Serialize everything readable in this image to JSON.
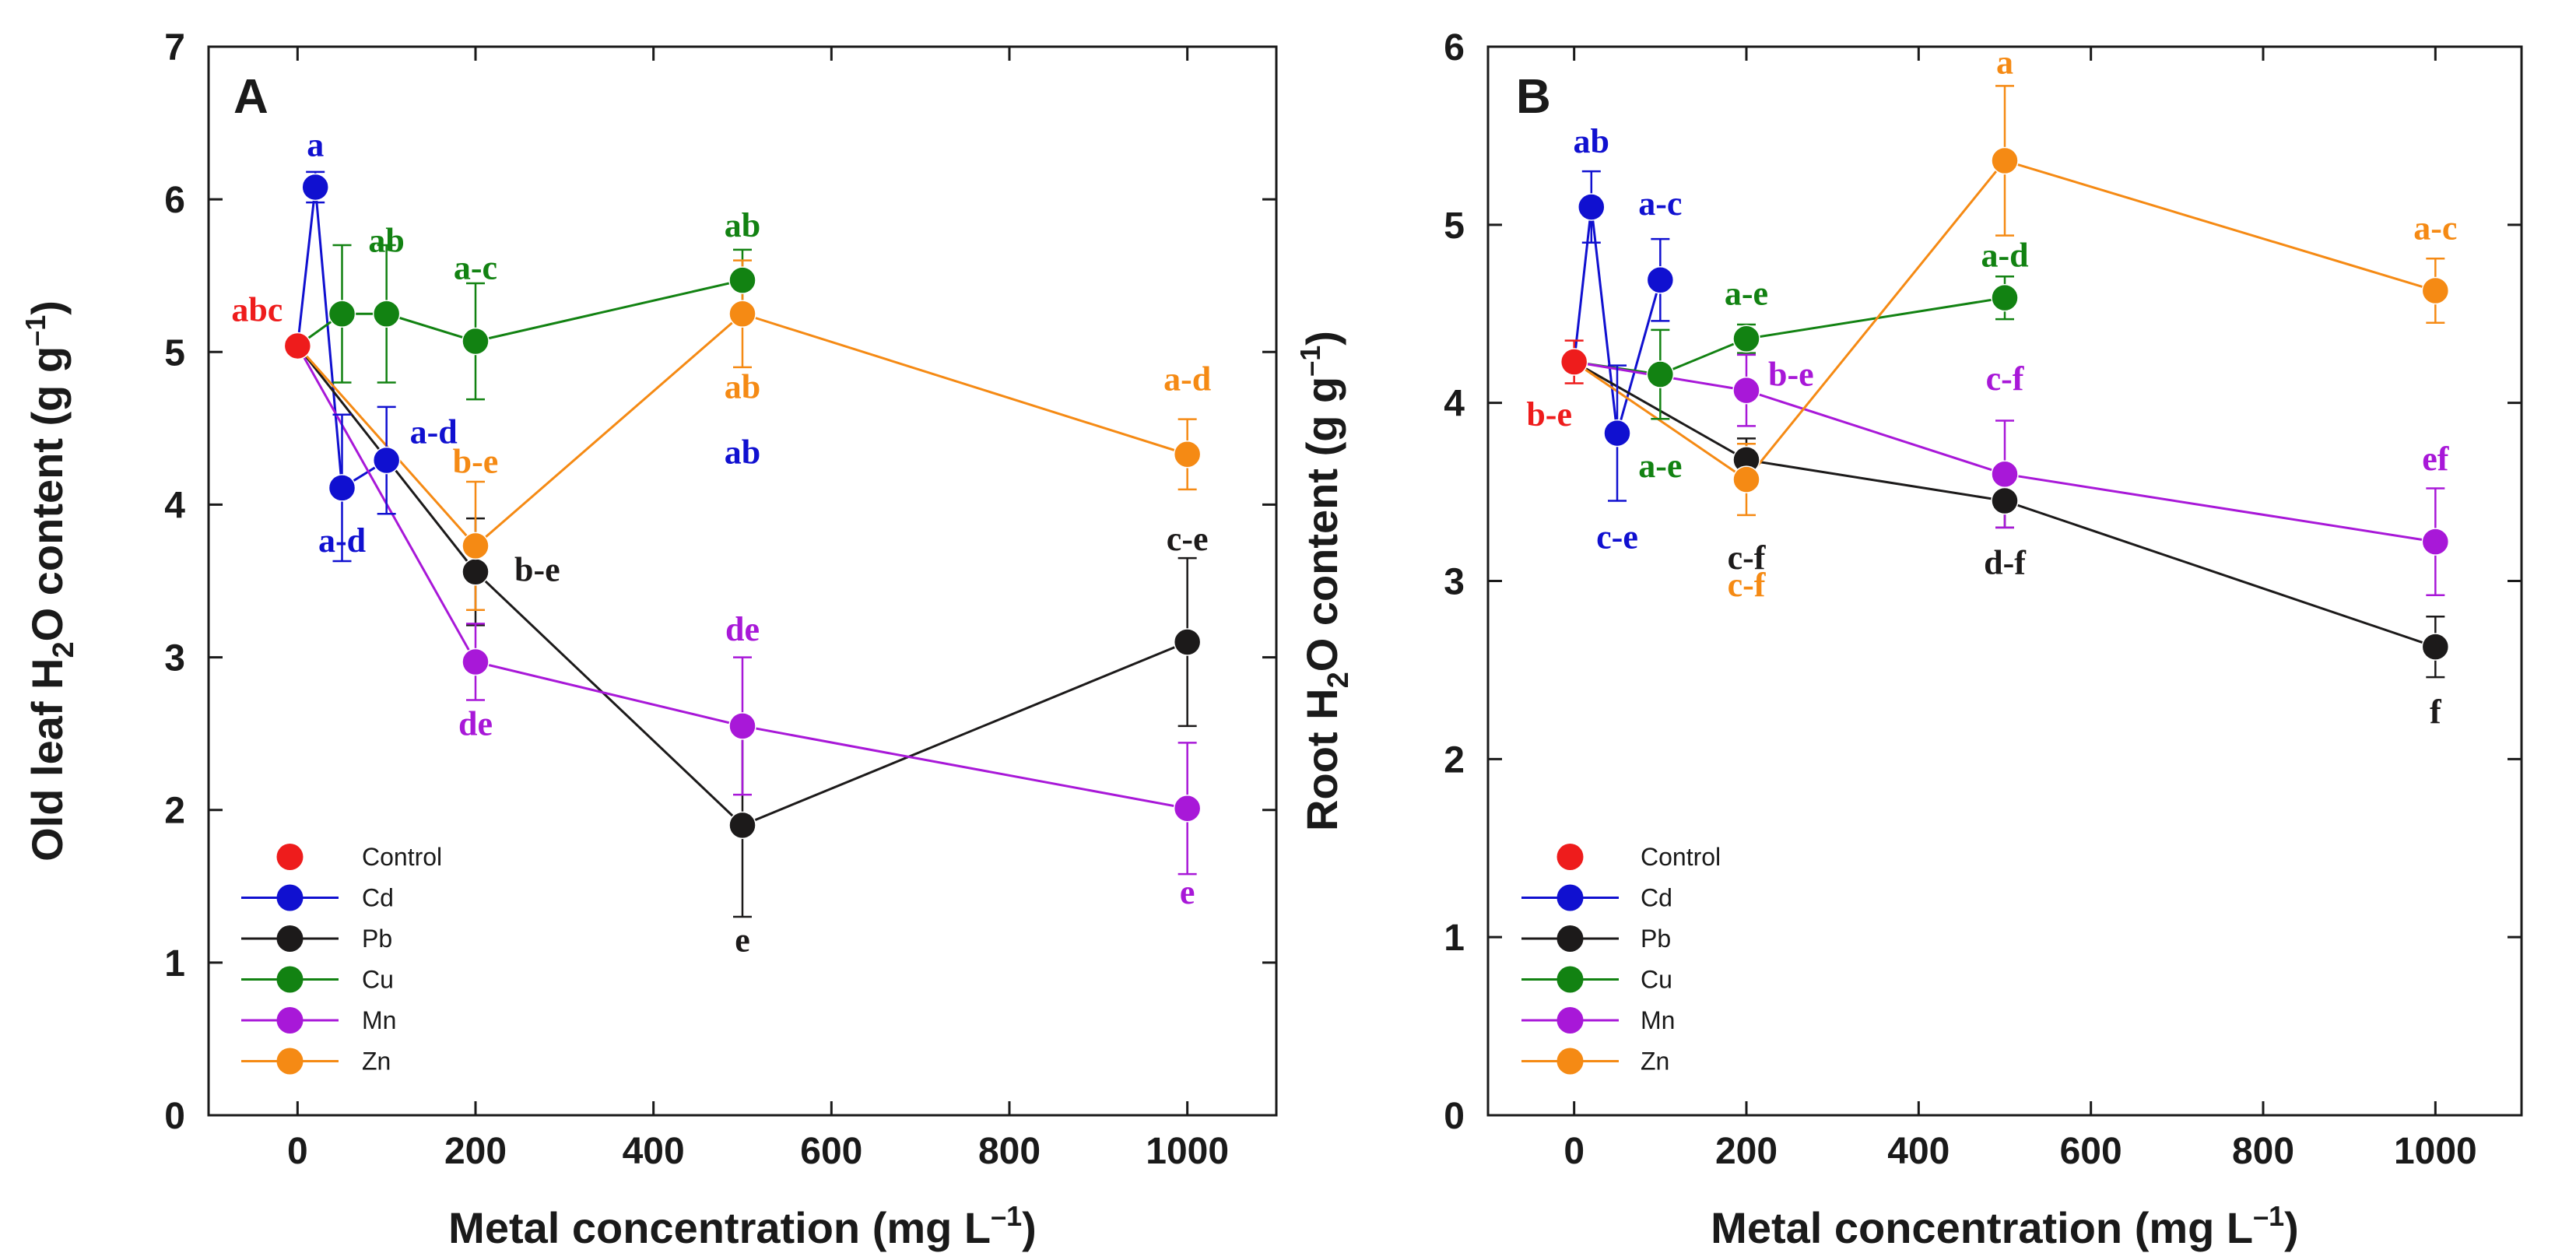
{
  "chart_data": [
    {
      "type": "line",
      "panel_label": "A",
      "xlabel": "Metal concentration (mg L",
      "xlabel_sup": "–1",
      "xlabel_end": ")",
      "ylabel_parts": [
        "Old leaf H",
        "2",
        "O content (g g",
        "–1",
        ")"
      ],
      "xlim": [
        -100,
        1100
      ],
      "ylim": [
        0,
        7
      ],
      "xticks": [
        0,
        200,
        400,
        600,
        800,
        1000
      ],
      "yticks": [
        0,
        1,
        2,
        3,
        4,
        5,
        6,
        7
      ],
      "x_tick_labels": [
        "0",
        "200",
        "400",
        "600",
        "800",
        "1000"
      ],
      "y_tick_labels": [
        "0",
        "1",
        "2",
        "3",
        "4",
        "5",
        "6",
        "7"
      ],
      "legend_position": "bottom-left",
      "series": [
        {
          "name": "Control",
          "color": "#ee1c1c",
          "line": false,
          "x": [
            0
          ],
          "y": [
            5.04
          ],
          "err": [
            0
          ],
          "labels": [
            "abc"
          ]
        },
        {
          "name": "Cd",
          "color": "#1010d0",
          "line": true,
          "x": [
            0,
            20,
            50,
            100
          ],
          "y": [
            5.04,
            6.08,
            4.11,
            4.29
          ],
          "err": [
            0,
            0.1,
            0.48,
            0.35
          ],
          "labels": [
            "",
            "a",
            "a-d",
            "a-d"
          ]
        },
        {
          "name": "Pb",
          "color": "#1c1a1a",
          "line": true,
          "x": [
            0,
            200,
            500,
            1000
          ],
          "y": [
            5.04,
            3.56,
            1.9,
            3.1
          ],
          "err": [
            0,
            0.35,
            0.6,
            0.55
          ],
          "labels": [
            "",
            "b-e",
            "e",
            "c-e"
          ]
        },
        {
          "name": "Cu",
          "color": "#128212",
          "line": true,
          "x": [
            0,
            50,
            100,
            200,
            500
          ],
          "y": [
            5.04,
            5.25,
            5.25,
            5.07,
            5.47
          ],
          "err": [
            0,
            0.45,
            0.45,
            0.38,
            0.2
          ],
          "labels": [
            "",
            "",
            "ab",
            "a-c",
            "ab"
          ]
        },
        {
          "name": "Mn",
          "color": "#a818d8",
          "line": true,
          "x": [
            0,
            200,
            500,
            1000
          ],
          "y": [
            5.04,
            2.97,
            2.55,
            2.01
          ],
          "err": [
            0,
            0.25,
            0.45,
            0.43
          ],
          "labels": [
            "",
            "de",
            "de",
            "e"
          ]
        },
        {
          "name": "Zn",
          "color": "#f58a14",
          "line": true,
          "x": [
            0,
            200,
            500,
            1000
          ],
          "y": [
            5.04,
            3.73,
            5.25,
            4.33
          ],
          "err": [
            0,
            0.42,
            0.35,
            0.23
          ],
          "labels": [
            "",
            "b-e",
            "ab",
            "a-d"
          ]
        }
      ],
      "extra_annotations": [
        {
          "text": "ab",
          "color": "#1010d0",
          "x": 500,
          "y": 4.27
        }
      ]
    },
    {
      "type": "line",
      "panel_label": "B",
      "xlabel": "Metal concentration (mg L",
      "xlabel_sup": "–1",
      "xlabel_end": ")",
      "ylabel_parts": [
        "Root H",
        "2",
        "O content (g g",
        "–1",
        ")"
      ],
      "xlim": [
        -100,
        1100
      ],
      "ylim": [
        0,
        6
      ],
      "xticks": [
        0,
        200,
        400,
        600,
        800,
        1000
      ],
      "yticks": [
        0,
        1,
        2,
        3,
        4,
        5,
        6
      ],
      "x_tick_labels": [
        "0",
        "200",
        "400",
        "600",
        "800",
        "1000"
      ],
      "y_tick_labels": [
        "0",
        "1",
        "2",
        "3",
        "4",
        "5",
        "6"
      ],
      "legend_position": "bottom-left",
      "series": [
        {
          "name": "Control",
          "color": "#ee1c1c",
          "line": false,
          "x": [
            0
          ],
          "y": [
            4.23
          ],
          "err": [
            0.12
          ],
          "labels": [
            "b-e"
          ]
        },
        {
          "name": "Cd",
          "color": "#1010d0",
          "line": true,
          "x": [
            0,
            20,
            50,
            100
          ],
          "y": [
            4.23,
            5.1,
            3.83,
            4.69
          ],
          "err": [
            0,
            0.2,
            0.38,
            0.23
          ],
          "labels": [
            "",
            "ab",
            "c-e",
            "a-c"
          ]
        },
        {
          "name": "Pb",
          "color": "#1c1a1a",
          "line": true,
          "x": [
            0,
            200,
            500,
            1000
          ],
          "y": [
            4.23,
            3.68,
            3.45,
            2.63
          ],
          "err": [
            0,
            0.12,
            0.15,
            0.17
          ],
          "labels": [
            "",
            "c-f",
            "d-f",
            "f"
          ]
        },
        {
          "name": "Cu",
          "color": "#128212",
          "line": true,
          "x": [
            0,
            100,
            200,
            500
          ],
          "y": [
            4.23,
            4.16,
            4.36,
            4.59
          ],
          "err": [
            0,
            0.25,
            0.08,
            0.12
          ],
          "labels": [
            "",
            "a-e",
            "a-e",
            "a-d"
          ]
        },
        {
          "name": "Mn",
          "color": "#a818d8",
          "line": true,
          "x": [
            0,
            200,
            500,
            1000
          ],
          "y": [
            4.23,
            4.07,
            3.6,
            3.22
          ],
          "err": [
            0,
            0.2,
            0.3,
            0.3
          ],
          "labels": [
            "",
            "b-e",
            "c-f",
            "ef"
          ]
        },
        {
          "name": "Zn",
          "color": "#f58a14",
          "line": true,
          "x": [
            0,
            200,
            500,
            1000
          ],
          "y": [
            4.23,
            3.57,
            5.36,
            4.63
          ],
          "err": [
            0,
            0.2,
            0.42,
            0.18
          ],
          "labels": [
            "",
            "c-f",
            "a",
            "a-c"
          ]
        }
      ],
      "extra_annotations": []
    }
  ]
}
